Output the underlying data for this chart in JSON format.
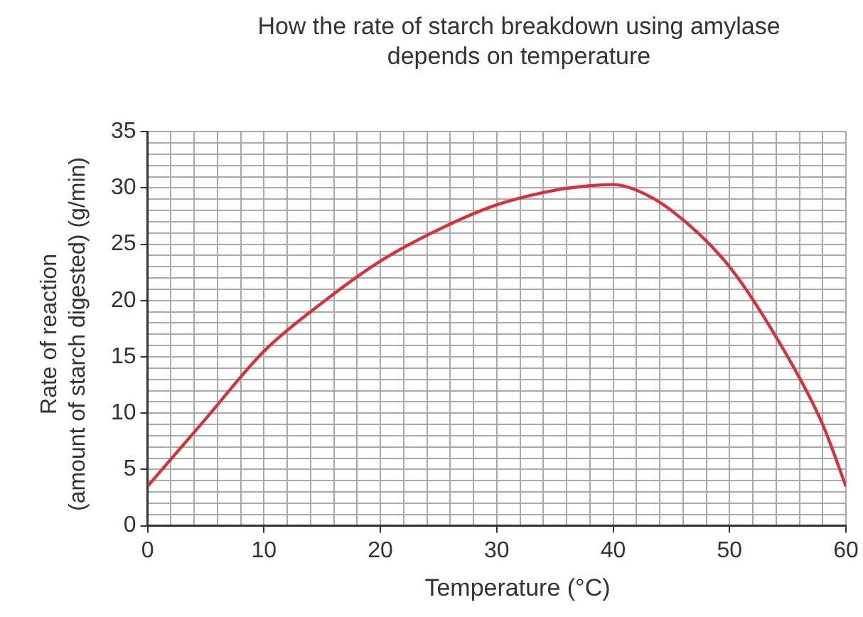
{
  "chart_data": {
    "type": "line",
    "title": "How the rate of starch breakdown using amylase depends on temperature",
    "xlabel": "Temperature (°C)",
    "ylabel": "Rate of reaction (amount of starch digested) (g/min)",
    "x": [
      0,
      5,
      10,
      15,
      20,
      25,
      30,
      35,
      38,
      40,
      42,
      45,
      50,
      55,
      58,
      60
    ],
    "series": [
      {
        "color": "#d0343c",
        "values": [
          3.5,
          9.5,
          15.5,
          19.8,
          23.5,
          26.3,
          28.5,
          29.8,
          30.2,
          30.3,
          29.8,
          28,
          23,
          15,
          9,
          3.5
        ]
      }
    ],
    "xlim": [
      0,
      60
    ],
    "xticks": [
      0,
      {
        "value": 2,
        "label": null
      },
      {
        "value": 4,
        "label": null
      },
      {
        "value": 6,
        "label": null
      },
      {
        "value": 8,
        "label": null
      },
      10,
      {
        "value": 12,
        "label": null
      },
      {
        "value": 14,
        "label": null
      },
      {
        "value": 16,
        "label": null
      },
      {
        "value": 18,
        "label": null
      },
      20,
      {
        "value": 22,
        "label": null
      },
      {
        "value": 24,
        "label": null
      },
      {
        "value": 26,
        "label": null
      },
      {
        "value": 28,
        "label": null
      },
      30,
      {
        "value": 32,
        "label": null
      },
      {
        "value": 34,
        "label": null
      },
      {
        "value": 36,
        "label": null
      },
      {
        "value": 38,
        "label": null
      },
      40,
      {
        "value": 42,
        "label": null
      },
      {
        "value": 44,
        "label": null
      },
      {
        "value": 46,
        "label": null
      },
      {
        "value": 48,
        "label": null
      },
      50,
      {
        "value": 52,
        "label": null
      },
      {
        "value": 54,
        "label": null
      },
      {
        "value": 56,
        "label": null
      },
      {
        "value": 58,
        "label": null
      },
      60
    ],
    "ylim": [
      0,
      35
    ],
    "yticks": [
      0,
      {
        "value": 1,
        "label": null
      },
      {
        "value": 2,
        "label": null
      },
      {
        "value": 3,
        "label": null
      },
      {
        "value": 4,
        "label": null
      },
      5,
      {
        "value": 6,
        "label": null
      },
      {
        "value": 7,
        "label": null
      },
      {
        "value": 8,
        "label": null
      },
      {
        "value": 9,
        "label": null
      },
      10,
      {
        "value": 11,
        "label": null
      },
      {
        "value": 12,
        "label": null
      },
      {
        "value": 13,
        "label": null
      },
      {
        "value": 14,
        "label": null
      },
      15,
      {
        "value": 16,
        "label": null
      },
      {
        "value": 17,
        "label": null
      },
      {
        "value": 18,
        "label": null
      },
      {
        "value": 19,
        "label": null
      },
      20,
      {
        "value": 21,
        "label": null
      },
      {
        "value": 22,
        "label": null
      },
      {
        "value": 23,
        "label": null
      },
      {
        "value": 24,
        "label": null
      },
      25,
      {
        "value": 26,
        "label": null
      },
      {
        "value": 27,
        "label": null
      },
      {
        "value": 28,
        "label": null
      },
      {
        "value": 29,
        "label": null
      },
      30,
      {
        "value": 31,
        "label": null
      },
      {
        "value": 32,
        "label": null
      },
      {
        "value": 33,
        "label": null
      },
      {
        "value": 34,
        "label": null
      },
      35
    ],
    "grid": true,
    "marker": "none",
    "line_style": "solid"
  }
}
